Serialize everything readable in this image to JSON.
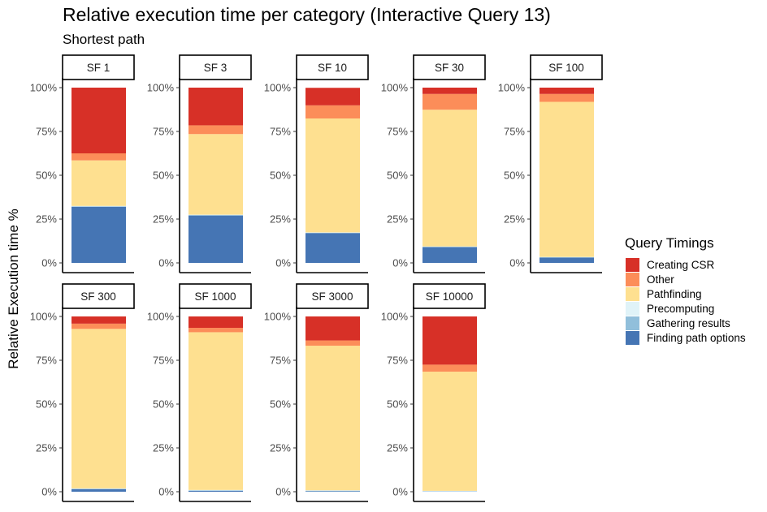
{
  "chart_data": {
    "type": "bar",
    "stacked": true,
    "normalized": true,
    "title": "Relative execution time per category (Interactive Query 13)",
    "subtitle": "Shortest path",
    "ylabel": "Relative Execution time %",
    "xlabel": "",
    "ylim": [
      0,
      100
    ],
    "y_ticks": [
      "0%",
      "25%",
      "50%",
      "75%",
      "100%"
    ],
    "grid": false,
    "legend": {
      "title": "Query Timings",
      "placement": "right",
      "entries": [
        "Creating CSR",
        "Other",
        "Pathfinding",
        "Precomputing",
        "Gathering results",
        "Finding path options"
      ]
    },
    "series": [
      {
        "name": "Finding path options",
        "color": "#4575b4",
        "values": [
          32,
          27,
          17,
          9,
          3,
          1.5,
          0.5,
          0.3,
          0.1
        ]
      },
      {
        "name": "Gathering results",
        "color": "#91bfdb",
        "values": [
          0.3,
          0.3,
          0.2,
          0.2,
          0.2,
          0.2,
          0.3,
          0.3,
          0.2
        ]
      },
      {
        "name": "Precomputing",
        "color": "#e0f3f8",
        "values": [
          0.2,
          0.2,
          0.2,
          0.2,
          0.2,
          0.2,
          0.2,
          0.2,
          0.2
        ]
      },
      {
        "name": "Pathfinding",
        "color": "#fee090",
        "values": [
          26,
          46,
          65,
          78,
          88.5,
          91,
          90,
          82.5,
          68
        ]
      },
      {
        "name": "Other",
        "color": "#fc8d59",
        "values": [
          4,
          5,
          7.5,
          9,
          4.5,
          3,
          2.5,
          3,
          4
        ]
      },
      {
        "name": "Creating CSR",
        "color": "#d73027",
        "values": [
          37.5,
          21.5,
          10,
          3.6,
          3.6,
          4.1,
          6.5,
          13.7,
          27.5
        ]
      }
    ],
    "facets": [
      "SF 1",
      "SF 3",
      "SF 10",
      "SF 30",
      "SF 100",
      "SF 300",
      "SF 1000",
      "SF 3000",
      "SF 10000"
    ]
  }
}
